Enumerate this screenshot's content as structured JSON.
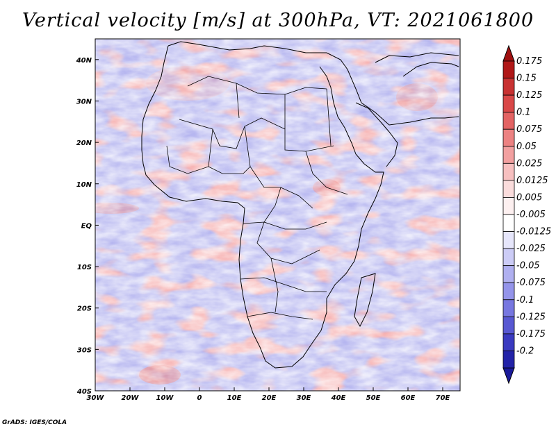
{
  "title": "Vertical velocity [m/s] at 300hPa, VT: 2021061800",
  "credit": "GrADS: IGES/COLA",
  "map": {
    "lon_range": [
      -30,
      75
    ],
    "lat_range": [
      -40,
      45
    ],
    "x_ticks": [
      "30W",
      "20W",
      "10W",
      "0",
      "10E",
      "20E",
      "30E",
      "40E",
      "50E",
      "60E",
      "70E"
    ],
    "y_ticks": [
      "40S",
      "30S",
      "20S",
      "10S",
      "EQ",
      "10N",
      "20N",
      "30N",
      "40N"
    ],
    "x_tick_values": [
      -30,
      -20,
      -10,
      0,
      10,
      20,
      30,
      40,
      50,
      60,
      70
    ],
    "y_tick_values": [
      -40,
      -30,
      -20,
      -10,
      0,
      10,
      20,
      30,
      40
    ]
  },
  "colorbar": {
    "levels": [
      {
        "label": "0.175",
        "color": "#b01818"
      },
      {
        "label": "0.15",
        "color": "#c83232"
      },
      {
        "label": "0.125",
        "color": "#d94848"
      },
      {
        "label": "0.1",
        "color": "#e36363"
      },
      {
        "label": "0.075",
        "color": "#ec8282"
      },
      {
        "label": "0.05",
        "color": "#f2a0a0"
      },
      {
        "label": "0.025",
        "color": "#f7c0c0"
      },
      {
        "label": "0.0125",
        "color": "#fadcdc"
      },
      {
        "label": "0.005",
        "color": "#fdf0f0"
      },
      {
        "label": "-0.005",
        "color": "#ffffff"
      },
      {
        "label": "-0.0125",
        "color": "#e6e6fb"
      },
      {
        "label": "-0.025",
        "color": "#ccccf6"
      },
      {
        "label": "-0.05",
        "color": "#b0b0f0"
      },
      {
        "label": "-0.075",
        "color": "#9494ea"
      },
      {
        "label": "-0.1",
        "color": "#7777e0"
      },
      {
        "label": "-0.125",
        "color": "#5858d2"
      },
      {
        "label": "-0.175",
        "color": "#3a3ac0"
      },
      {
        "label": "-0.2",
        "color": "#2323a8"
      }
    ],
    "top_arrow_color": "#a01010",
    "bottom_arrow_color": "#1a1a9a"
  }
}
